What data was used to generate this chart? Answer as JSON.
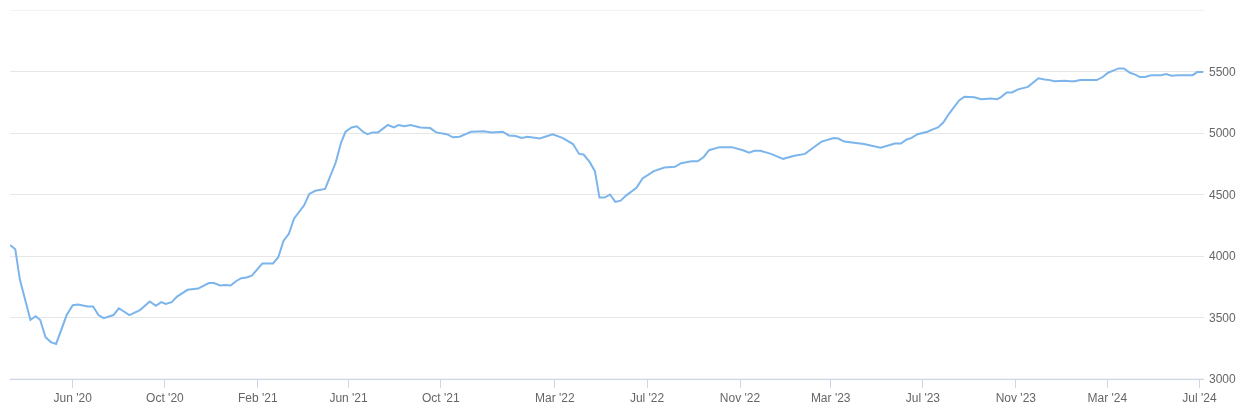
{
  "chart_data": {
    "type": "line",
    "x": [
      "2020-03-10",
      "2020-03-17",
      "2020-03-23",
      "2020-04-06",
      "2020-04-13",
      "2020-04-19",
      "2020-04-26",
      "2020-05-03",
      "2020-05-10",
      "2020-05-24",
      "2020-06-01",
      "2020-06-08",
      "2020-06-21",
      "2020-06-28",
      "2020-07-05",
      "2020-07-12",
      "2020-07-25",
      "2020-08-01",
      "2020-08-15",
      "2020-08-29",
      "2020-09-11",
      "2020-09-19",
      "2020-09-26",
      "2020-10-02",
      "2020-10-10",
      "2020-10-17",
      "2020-10-31",
      "2020-11-14",
      "2020-11-28",
      "2020-12-05",
      "2020-12-13",
      "2020-12-20",
      "2020-12-27",
      "2021-01-03",
      "2021-01-10",
      "2021-01-17",
      "2021-01-24",
      "2021-02-07",
      "2021-02-21",
      "2021-02-28",
      "2021-03-07",
      "2021-03-14",
      "2021-03-21",
      "2021-04-03",
      "2021-04-10",
      "2021-04-18",
      "2021-05-01",
      "2021-05-15",
      "2021-05-22",
      "2021-05-28",
      "2021-06-05",
      "2021-06-12",
      "2021-06-20",
      "2021-06-26",
      "2021-07-03",
      "2021-07-10",
      "2021-07-23",
      "2021-07-31",
      "2021-08-06",
      "2021-08-14",
      "2021-08-22",
      "2021-09-04",
      "2021-09-17",
      "2021-09-25",
      "2021-10-09",
      "2021-10-17",
      "2021-10-26",
      "2021-11-10",
      "2021-11-27",
      "2021-12-07",
      "2021-12-22",
      "2021-12-30",
      "2022-01-08",
      "2022-01-16",
      "2022-01-24",
      "2022-02-09",
      "2022-02-26",
      "2022-03-11",
      "2022-03-25",
      "2022-04-02",
      "2022-04-08",
      "2022-04-16",
      "2022-04-23",
      "2022-04-29",
      "2022-05-06",
      "2022-05-13",
      "2022-05-20",
      "2022-05-27",
      "2022-06-04",
      "2022-06-17",
      "2022-06-25",
      "2022-07-10",
      "2022-07-24",
      "2022-08-07",
      "2022-08-15",
      "2022-08-29",
      "2022-09-06",
      "2022-09-14",
      "2022-09-21",
      "2022-10-05",
      "2022-10-21",
      "2022-11-05",
      "2022-11-13",
      "2022-11-20",
      "2022-11-28",
      "2022-12-12",
      "2022-12-28",
      "2023-01-12",
      "2023-01-26",
      "2023-02-08",
      "2023-02-17",
      "2023-03-05",
      "2023-03-11",
      "2023-03-19",
      "2023-04-14",
      "2023-05-06",
      "2023-05-25",
      "2023-06-02",
      "2023-06-09",
      "2023-06-16",
      "2023-06-24",
      "2023-07-07",
      "2023-07-14",
      "2023-07-21",
      "2023-07-28",
      "2023-08-05",
      "2023-08-18",
      "2023-08-25",
      "2023-09-07",
      "2023-09-16",
      "2023-09-29",
      "2023-10-07",
      "2023-10-12",
      "2023-10-20",
      "2023-10-27",
      "2023-11-04",
      "2023-11-17",
      "2023-12-01",
      "2023-12-09",
      "2023-12-16",
      "2023-12-22",
      "2024-01-04",
      "2024-01-12",
      "2024-01-18",
      "2024-01-25",
      "2024-02-16",
      "2024-02-24",
      "2024-03-02",
      "2024-03-08",
      "2024-03-16",
      "2024-03-23",
      "2024-03-31",
      "2024-04-07",
      "2024-04-13",
      "2024-04-20",
      "2024-04-28",
      "2024-05-11",
      "2024-05-18",
      "2024-05-25",
      "2024-06-03",
      "2024-06-22",
      "2024-06-28",
      "2024-07-06"
    ],
    "values": [
      4090,
      4055,
      3810,
      3480,
      3510,
      3480,
      3340,
      3300,
      3285,
      3520,
      3600,
      3605,
      3590,
      3590,
      3520,
      3495,
      3520,
      3575,
      3520,
      3560,
      3630,
      3595,
      3625,
      3610,
      3625,
      3670,
      3725,
      3735,
      3780,
      3780,
      3760,
      3765,
      3760,
      3795,
      3820,
      3825,
      3840,
      3940,
      3940,
      3990,
      4125,
      4180,
      4305,
      4410,
      4505,
      4530,
      4545,
      4760,
      4920,
      5010,
      5045,
      5055,
      5010,
      4990,
      5005,
      5005,
      5065,
      5045,
      5065,
      5055,
      5065,
      5045,
      5040,
      5005,
      4990,
      4965,
      4970,
      5010,
      5015,
      5005,
      5010,
      4980,
      4975,
      4960,
      4970,
      4955,
      4990,
      4960,
      4910,
      4830,
      4825,
      4765,
      4690,
      4475,
      4475,
      4500,
      4440,
      4450,
      4495,
      4555,
      4630,
      4690,
      4720,
      4725,
      4755,
      4770,
      4770,
      4805,
      4860,
      4885,
      4885,
      4860,
      4840,
      4855,
      4855,
      4830,
      4790,
      4815,
      4830,
      4890,
      4930,
      4960,
      4955,
      4930,
      4910,
      4880,
      4915,
      4915,
      4945,
      4960,
      4990,
      5010,
      5030,
      5045,
      5085,
      5160,
      5265,
      5295,
      5290,
      5275,
      5280,
      5275,
      5290,
      5330,
      5330,
      5355,
      5375,
      5445,
      5435,
      5430,
      5420,
      5425,
      5420,
      5420,
      5430,
      5430,
      5455,
      5490,
      5505,
      5525,
      5525,
      5490,
      5475,
      5455,
      5455,
      5470,
      5470,
      5480,
      5465,
      5470,
      5470,
      5495,
      5495
    ],
    "color": "#7cb5ec",
    "xlim": [
      "2020-03-10",
      "2024-07-07"
    ],
    "xticks": [
      {
        "value": "2020-06-01",
        "label": "Jun '20"
      },
      {
        "value": "2020-10-01",
        "label": "Oct '20"
      },
      {
        "value": "2021-02-01",
        "label": "Feb '21"
      },
      {
        "value": "2021-06-01",
        "label": "Jun '21"
      },
      {
        "value": "2021-10-01",
        "label": "Oct '21"
      },
      {
        "value": "2022-03-01",
        "label": "Mar '22"
      },
      {
        "value": "2022-07-01",
        "label": "Jul '22"
      },
      {
        "value": "2022-11-01",
        "label": "Nov '22"
      },
      {
        "value": "2023-03-01",
        "label": "Mar '23"
      },
      {
        "value": "2023-07-01",
        "label": "Jul '23"
      },
      {
        "value": "2023-11-01",
        "label": "Nov '23"
      },
      {
        "value": "2024-03-01",
        "label": "Mar '24"
      },
      {
        "value": "2024-07-01",
        "label": "Jul '24"
      }
    ],
    "ylim": [
      3000,
      6000
    ],
    "yticks": [
      3000,
      3500,
      4000,
      4500,
      5000,
      5500,
      {
        "value": 6000,
        "label": null
      }
    ],
    "grid": "y",
    "marker": "none",
    "line_style": "solid"
  }
}
